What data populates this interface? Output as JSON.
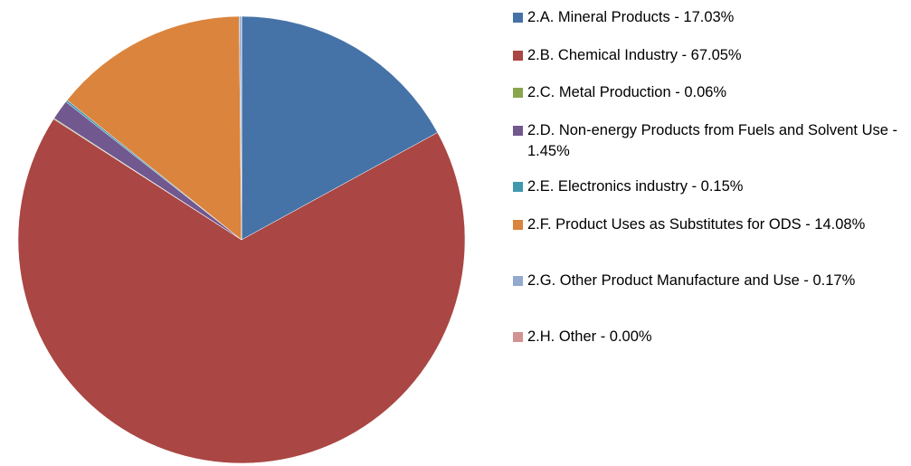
{
  "chart_data": {
    "type": "pie",
    "categories": [
      "2.A. Mineral Products - 17.03%",
      "2.B. Chemical Industry - 67.05%",
      "2.C. Metal Production - 0.06%",
      "2.D. Non-energy Products from Fuels and Solvent Use - 1.45%",
      "2.E. Electronics industry - 0.15%",
      "2.F. Product Uses as Substitutes for ODS - 14.08%",
      "2.G. Other Product Manufacture and Use - 0.17%",
      "2.H. Other - 0.00%"
    ],
    "values": [
      17.03,
      67.05,
      0.06,
      1.45,
      0.15,
      14.08,
      0.17,
      0.0
    ],
    "colors": [
      "#4572a7",
      "#aa4643",
      "#89a54e",
      "#71588f",
      "#4198af",
      "#db843d",
      "#93a9cf",
      "#d19392"
    ],
    "legend": "right"
  }
}
